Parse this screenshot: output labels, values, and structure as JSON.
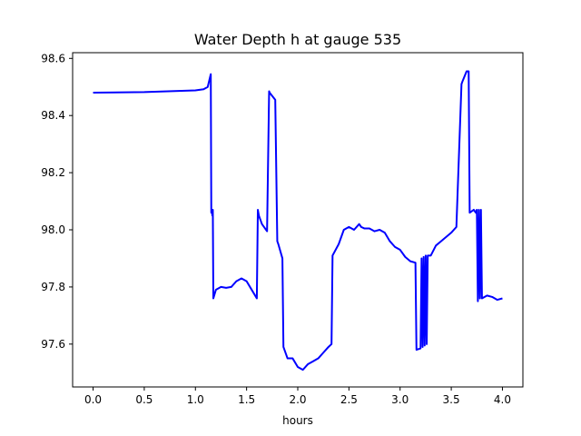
{
  "chart_data": {
    "type": "line",
    "title": "Water Depth h at gauge 535",
    "xlabel": "hours",
    "ylabel": "",
    "xlim": [
      -0.2,
      4.2
    ],
    "ylim": [
      97.45,
      98.62
    ],
    "grid": false,
    "xticks": [
      0.0,
      0.5,
      1.0,
      1.5,
      2.0,
      2.5,
      3.0,
      3.5,
      4.0
    ],
    "xtick_labels": [
      "0.0",
      "0.5",
      "1.0",
      "1.5",
      "2.0",
      "2.5",
      "3.0",
      "3.5",
      "4.0"
    ],
    "yticks": [
      97.6,
      97.8,
      98.0,
      98.2,
      98.4,
      98.6
    ],
    "ytick_labels": [
      "97.6",
      "97.8",
      "98.0",
      "98.2",
      "98.4",
      "98.6"
    ],
    "series": [
      {
        "color": "#0000ff",
        "x": [
          0.0,
          0.5,
          1.0,
          1.08,
          1.12,
          1.15,
          1.155,
          1.16,
          1.165,
          1.17,
          1.175,
          1.2,
          1.25,
          1.3,
          1.35,
          1.4,
          1.45,
          1.5,
          1.55,
          1.6,
          1.61,
          1.62,
          1.63,
          1.65,
          1.7,
          1.72,
          1.725,
          1.78,
          1.8,
          1.81,
          1.85,
          1.86,
          1.9,
          1.95,
          2.0,
          2.05,
          2.1,
          2.15,
          2.2,
          2.25,
          2.3,
          2.33,
          2.34,
          2.4,
          2.45,
          2.5,
          2.55,
          2.6,
          2.62,
          2.65,
          2.7,
          2.75,
          2.8,
          2.85,
          2.9,
          2.95,
          3.0,
          3.05,
          3.1,
          3.15,
          3.16,
          3.2,
          3.21,
          3.22,
          3.23,
          3.24,
          3.25,
          3.26,
          3.27,
          3.3,
          3.35,
          3.4,
          3.45,
          3.5,
          3.55,
          3.6,
          3.61,
          3.65,
          3.67,
          3.68,
          3.7,
          3.72,
          3.74,
          3.75,
          3.76,
          3.77,
          3.78,
          3.79,
          3.8,
          3.85,
          3.9,
          3.95,
          4.0
        ],
        "y": [
          98.48,
          98.482,
          98.488,
          98.492,
          98.5,
          98.545,
          98.06,
          98.07,
          98.05,
          98.07,
          97.76,
          97.79,
          97.8,
          97.797,
          97.8,
          97.82,
          97.83,
          97.82,
          97.79,
          97.76,
          98.07,
          98.05,
          98.04,
          98.02,
          97.995,
          98.485,
          98.48,
          98.455,
          97.96,
          97.95,
          97.9,
          97.59,
          97.55,
          97.55,
          97.52,
          97.51,
          97.53,
          97.54,
          97.55,
          97.57,
          97.59,
          97.6,
          97.91,
          97.95,
          98.0,
          98.01,
          98.0,
          98.02,
          98.01,
          98.005,
          98.005,
          97.995,
          98.0,
          97.99,
          97.96,
          97.94,
          97.93,
          97.905,
          97.89,
          97.885,
          97.58,
          97.585,
          97.9,
          97.59,
          97.905,
          97.595,
          97.91,
          97.6,
          97.91,
          97.91,
          97.945,
          97.96,
          97.975,
          97.99,
          98.01,
          98.51,
          98.52,
          98.555,
          98.555,
          98.06,
          98.065,
          98.07,
          98.06,
          98.07,
          97.75,
          98.07,
          97.76,
          98.07,
          97.76,
          97.77,
          97.765,
          97.755,
          97.76
        ]
      }
    ]
  }
}
